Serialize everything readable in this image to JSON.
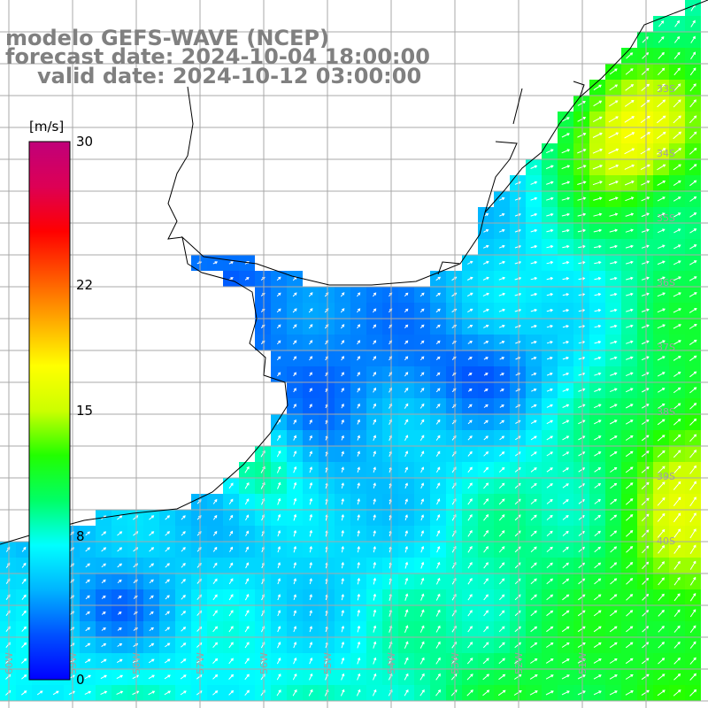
{
  "titles": {
    "model": "modelo GEFS-WAVE (NCEP)",
    "forecast": "forecast date: 2024-10-04 18:00:00",
    "valid": "valid date: 2024-10-12 03:00:00"
  },
  "colorbar": {
    "unit": "[m/s]",
    "min": 0,
    "max": 30,
    "ticks": [
      30,
      22,
      15,
      8,
      0
    ],
    "colors": [
      "#0000ff",
      "#0050ff",
      "#00b4ff",
      "#00ffff",
      "#00ff66",
      "#22ff00",
      "#ccff00",
      "#ffff00",
      "#ffaa00",
      "#ff5500",
      "#ff0000",
      "#dd0055",
      "#c0007a"
    ]
  },
  "map": {
    "land_color": "#ffffff",
    "coast_color": "#000000",
    "grid_color": "#a8a8a8",
    "arrow_color": "#ffffff",
    "lat_labels": [
      "33S",
      "34S",
      "35S",
      "36S",
      "37S",
      "38S",
      "39S",
      "40S"
    ],
    "lon_labels": [
      "60W",
      "59W",
      "58W",
      "57W",
      "56W",
      "55W",
      "54W",
      "53W",
      "52W",
      "51W"
    ]
  }
}
